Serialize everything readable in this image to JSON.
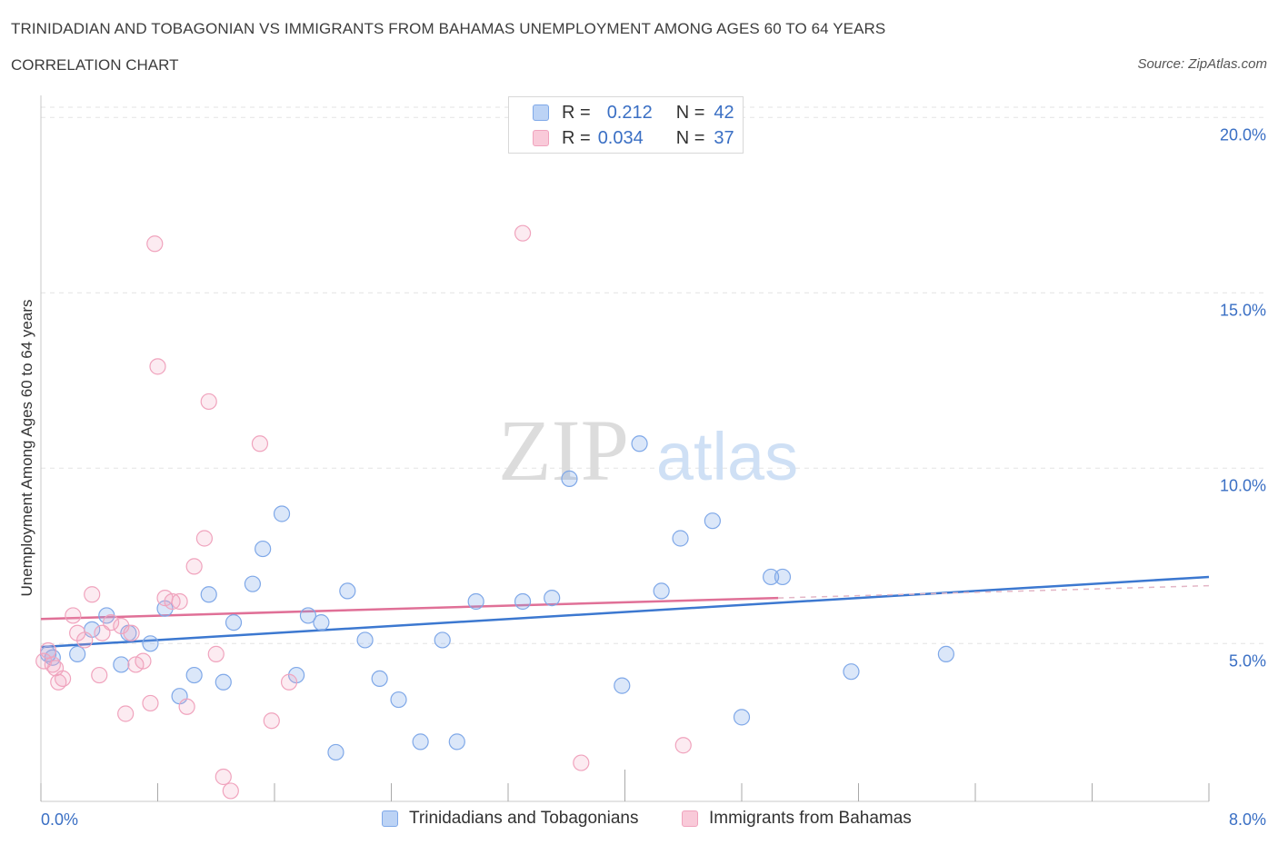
{
  "header": {
    "title": "TRINIDADIAN AND TOBAGONIAN VS IMMIGRANTS FROM BAHAMAS UNEMPLOYMENT AMONG AGES 60 TO 64 YEARS",
    "subtitle": "CORRELATION CHART",
    "source": "Source: ZipAtlas.com"
  },
  "watermark": {
    "zip": "ZIP",
    "atlas": "atlas"
  },
  "colors": {
    "blue": "#7fa8e8",
    "blue_line": "#3c78d0",
    "pink": "#f0a3bd",
    "pink_line": "#e07097",
    "axis_text": "#3a6fc4",
    "grid": "#e3e3e3"
  },
  "legend": {
    "rows": [
      {
        "r_label": "R =",
        "r_value": "0.212",
        "n_label": "N =",
        "n_value": "42"
      },
      {
        "r_label": "R =",
        "r_value": "0.034",
        "n_label": "N =",
        "n_value": "37"
      }
    ]
  },
  "chart_data": {
    "type": "scatter",
    "title": "TRINIDADIAN AND TOBAGONIAN VS IMMIGRANTS FROM BAHAMAS UNEMPLOYMENT AMONG AGES 60 TO 64 YEARS",
    "xlabel": "",
    "ylabel": "Unemployment Among Ages 60 to 64 years",
    "xlim": [
      0,
      8
    ],
    "ylim": [
      0.5,
      20.5
    ],
    "x_tick_labels": [
      "0.0%",
      "8.0%"
    ],
    "y_ticks": [
      5,
      10,
      15,
      20
    ],
    "y_tick_labels": [
      "5.0%",
      "10.0%",
      "15.0%",
      "20.0%"
    ],
    "grid": true,
    "legend_position": "bottom-center",
    "series": [
      {
        "name": "Trinidadians and Tobagonians",
        "color": "#7fa8e8",
        "trend": {
          "x": [
            0,
            8
          ],
          "y": [
            4.9,
            6.9
          ]
        },
        "points": [
          [
            0.05,
            4.7
          ],
          [
            0.08,
            4.6
          ],
          [
            0.25,
            4.7
          ],
          [
            0.35,
            5.4
          ],
          [
            0.45,
            5.8
          ],
          [
            0.6,
            5.3
          ],
          [
            0.55,
            4.4
          ],
          [
            0.75,
            5.0
          ],
          [
            0.85,
            6.0
          ],
          [
            0.95,
            3.5
          ],
          [
            1.05,
            4.1
          ],
          [
            1.15,
            6.4
          ],
          [
            1.25,
            3.9
          ],
          [
            1.32,
            5.6
          ],
          [
            1.45,
            6.7
          ],
          [
            1.52,
            7.7
          ],
          [
            1.65,
            8.7
          ],
          [
            1.75,
            4.1
          ],
          [
            1.83,
            5.8
          ],
          [
            1.92,
            5.6
          ],
          [
            2.02,
            1.9
          ],
          [
            2.1,
            6.5
          ],
          [
            2.22,
            5.1
          ],
          [
            2.32,
            4.0
          ],
          [
            2.45,
            3.4
          ],
          [
            2.6,
            2.2
          ],
          [
            2.75,
            5.1
          ],
          [
            2.85,
            2.2
          ],
          [
            2.98,
            6.2
          ],
          [
            3.3,
            6.2
          ],
          [
            3.5,
            6.3
          ],
          [
            3.62,
            9.7
          ],
          [
            3.98,
            3.8
          ],
          [
            4.1,
            10.7
          ],
          [
            4.25,
            6.5
          ],
          [
            4.38,
            8.0
          ],
          [
            4.6,
            8.5
          ],
          [
            4.8,
            2.9
          ],
          [
            5.0,
            6.9
          ],
          [
            5.08,
            6.9
          ],
          [
            5.55,
            4.2
          ],
          [
            6.2,
            4.7
          ]
        ]
      },
      {
        "name": "Immigrants from Bahamas",
        "color": "#f0a3bd",
        "trend": {
          "x": [
            0,
            5.05
          ],
          "y": [
            5.7,
            6.3
          ]
        },
        "points": [
          [
            0.05,
            4.8
          ],
          [
            0.1,
            4.3
          ],
          [
            0.12,
            3.9
          ],
          [
            0.15,
            4.0
          ],
          [
            0.22,
            5.8
          ],
          [
            0.25,
            5.3
          ],
          [
            0.3,
            5.1
          ],
          [
            0.35,
            6.4
          ],
          [
            0.4,
            4.1
          ],
          [
            0.42,
            5.3
          ],
          [
            0.48,
            5.6
          ],
          [
            0.55,
            5.5
          ],
          [
            0.58,
            3.0
          ],
          [
            0.62,
            5.3
          ],
          [
            0.65,
            4.4
          ],
          [
            0.7,
            4.5
          ],
          [
            0.75,
            3.3
          ],
          [
            0.78,
            16.4
          ],
          [
            0.8,
            12.9
          ],
          [
            0.85,
            6.3
          ],
          [
            0.9,
            6.2
          ],
          [
            0.95,
            6.2
          ],
          [
            1.0,
            3.2
          ],
          [
            1.05,
            7.2
          ],
          [
            1.12,
            8.0
          ],
          [
            1.15,
            11.9
          ],
          [
            1.2,
            4.7
          ],
          [
            1.25,
            1.2
          ],
          [
            1.3,
            0.8
          ],
          [
            1.5,
            10.7
          ],
          [
            1.58,
            2.8
          ],
          [
            1.7,
            3.9
          ],
          [
            3.3,
            16.7
          ],
          [
            3.7,
            1.6
          ],
          [
            4.4,
            2.1
          ],
          [
            0.02,
            4.5
          ],
          [
            0.08,
            4.4
          ]
        ]
      }
    ]
  },
  "bottom_legend": {
    "items": [
      {
        "label": "Trinidadians and Tobagonians"
      },
      {
        "label": "Immigrants from Bahamas"
      }
    ]
  }
}
